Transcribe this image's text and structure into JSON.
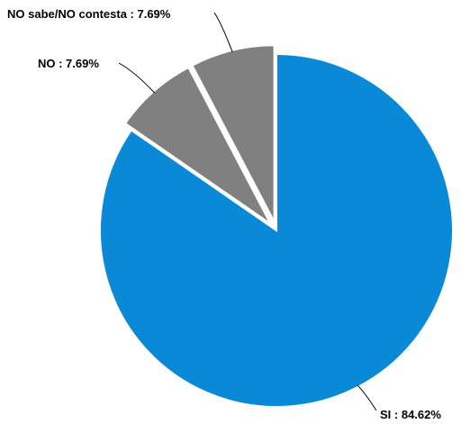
{
  "chart_data": {
    "type": "pie",
    "title": "",
    "slices": [
      {
        "label": "SI",
        "value": 84.62,
        "display": "SI : 84.62%",
        "color": "#0a8ad6",
        "exploded": false
      },
      {
        "label": "NO",
        "value": 7.69,
        "display": "NO : 7.69%",
        "color": "#808080",
        "exploded": true
      },
      {
        "label": "NO sabe/NO contesta",
        "value": 7.69,
        "display": "NO sabe/NO contesta : 7.69%",
        "color": "#808080",
        "exploded": true
      }
    ],
    "legend": "none"
  }
}
